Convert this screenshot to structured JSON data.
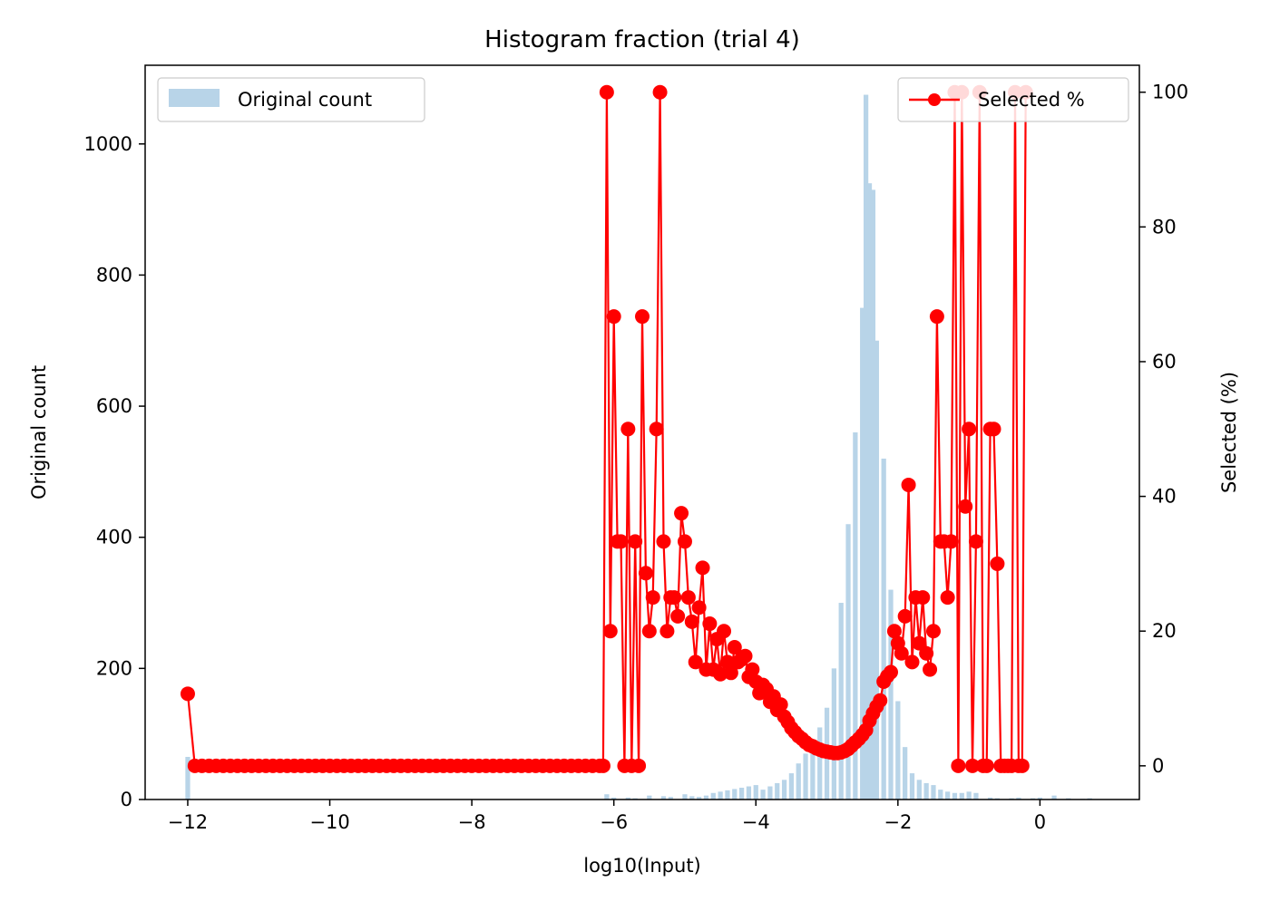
{
  "chart_data": {
    "type": "bar+line",
    "title": "Histogram fraction (trial 4)",
    "xlabel": "log10(Input)",
    "ylabel_left": "Original count",
    "ylabel_right": "Selected (%)",
    "xlim": [
      -12.6,
      1.4
    ],
    "ylim_left": [
      0,
      1120
    ],
    "ylim_right": [
      -5,
      104
    ],
    "x_ticks": [
      -12,
      -10,
      -8,
      -6,
      -4,
      -2,
      0
    ],
    "x_tick_labels": [
      "−12",
      "−10",
      "−8",
      "−6",
      "−4",
      "−2",
      "0"
    ],
    "y_left_ticks": [
      0,
      200,
      400,
      600,
      800,
      1000
    ],
    "y_left_tick_labels": [
      "0",
      "200",
      "400",
      "600",
      "800",
      "1000"
    ],
    "y_right_ticks": [
      0,
      20,
      40,
      60,
      80,
      100
    ],
    "y_right_tick_labels": [
      "0",
      "20",
      "40",
      "60",
      "80",
      "100"
    ],
    "grid": false,
    "legend_left": {
      "placement": "upper-left",
      "label": "Original count"
    },
    "legend_right": {
      "placement": "upper-right",
      "label": "Selected %"
    },
    "colors": {
      "bars": "#b8d4e8",
      "line": "#ff0000"
    },
    "histogram": {
      "name": "Original count",
      "bin_width": 0.067,
      "bins": [
        [
          -12.0,
          65
        ],
        [
          -6.1,
          8
        ],
        [
          -6.0,
          3
        ],
        [
          -5.8,
          3
        ],
        [
          -5.7,
          2
        ],
        [
          -5.5,
          6
        ],
        [
          -5.3,
          5
        ],
        [
          -5.2,
          4
        ],
        [
          -5.0,
          8
        ],
        [
          -4.9,
          5
        ],
        [
          -4.8,
          4
        ],
        [
          -4.7,
          6
        ],
        [
          -4.6,
          10
        ],
        [
          -4.5,
          12
        ],
        [
          -4.4,
          14
        ],
        [
          -4.3,
          16
        ],
        [
          -4.2,
          18
        ],
        [
          -4.1,
          20
        ],
        [
          -4.0,
          22
        ],
        [
          -3.9,
          15
        ],
        [
          -3.8,
          20
        ],
        [
          -3.7,
          25
        ],
        [
          -3.6,
          30
        ],
        [
          -3.5,
          40
        ],
        [
          -3.4,
          55
        ],
        [
          -3.3,
          70
        ],
        [
          -3.2,
          90
        ],
        [
          -3.1,
          110
        ],
        [
          -3.0,
          140
        ],
        [
          -2.9,
          200
        ],
        [
          -2.8,
          300
        ],
        [
          -2.7,
          420
        ],
        [
          -2.6,
          560
        ],
        [
          -2.5,
          750
        ],
        [
          -2.45,
          1075
        ],
        [
          -2.4,
          940
        ],
        [
          -2.35,
          930
        ],
        [
          -2.3,
          700
        ],
        [
          -2.2,
          520
        ],
        [
          -2.1,
          320
        ],
        [
          -2.0,
          150
        ],
        [
          -1.9,
          80
        ],
        [
          -1.8,
          40
        ],
        [
          -1.7,
          30
        ],
        [
          -1.6,
          25
        ],
        [
          -1.5,
          22
        ],
        [
          -1.4,
          15
        ],
        [
          -1.3,
          12
        ],
        [
          -1.2,
          10
        ],
        [
          -1.1,
          10
        ],
        [
          -1.0,
          12
        ],
        [
          -0.9,
          10
        ],
        [
          -0.7,
          3
        ],
        [
          -0.6,
          2
        ],
        [
          -0.4,
          2
        ],
        [
          -0.3,
          3
        ],
        [
          -0.1,
          2
        ],
        [
          0.0,
          3
        ],
        [
          0.2,
          6
        ],
        [
          0.4,
          2
        ],
        [
          0.6,
          1
        ],
        [
          0.7,
          2
        ]
      ]
    },
    "series": [
      {
        "name": "Selected %",
        "points": [
          [
            -12.0,
            10.7
          ],
          [
            -11.9,
            0
          ],
          [
            -11.8,
            0
          ],
          [
            -11.7,
            0
          ],
          [
            -11.6,
            0
          ],
          [
            -11.5,
            0
          ],
          [
            -11.4,
            0
          ],
          [
            -11.3,
            0
          ],
          [
            -11.2,
            0
          ],
          [
            -11.1,
            0
          ],
          [
            -11.0,
            0
          ],
          [
            -10.9,
            0
          ],
          [
            -10.8,
            0
          ],
          [
            -10.7,
            0
          ],
          [
            -10.6,
            0
          ],
          [
            -10.5,
            0
          ],
          [
            -10.4,
            0
          ],
          [
            -10.3,
            0
          ],
          [
            -10.2,
            0
          ],
          [
            -10.1,
            0
          ],
          [
            -10.0,
            0
          ],
          [
            -9.9,
            0
          ],
          [
            -9.8,
            0
          ],
          [
            -9.7,
            0
          ],
          [
            -9.6,
            0
          ],
          [
            -9.5,
            0
          ],
          [
            -9.4,
            0
          ],
          [
            -9.3,
            0
          ],
          [
            -9.2,
            0
          ],
          [
            -9.1,
            0
          ],
          [
            -9.0,
            0
          ],
          [
            -8.9,
            0
          ],
          [
            -8.8,
            0
          ],
          [
            -8.7,
            0
          ],
          [
            -8.6,
            0
          ],
          [
            -8.5,
            0
          ],
          [
            -8.4,
            0
          ],
          [
            -8.3,
            0
          ],
          [
            -8.2,
            0
          ],
          [
            -8.1,
            0
          ],
          [
            -8.0,
            0
          ],
          [
            -7.9,
            0
          ],
          [
            -7.8,
            0
          ],
          [
            -7.7,
            0
          ],
          [
            -7.6,
            0
          ],
          [
            -7.5,
            0
          ],
          [
            -7.4,
            0
          ],
          [
            -7.3,
            0
          ],
          [
            -7.2,
            0
          ],
          [
            -7.1,
            0
          ],
          [
            -7.0,
            0
          ],
          [
            -6.9,
            0
          ],
          [
            -6.8,
            0
          ],
          [
            -6.7,
            0
          ],
          [
            -6.6,
            0
          ],
          [
            -6.5,
            0
          ],
          [
            -6.4,
            0
          ],
          [
            -6.3,
            0
          ],
          [
            -6.2,
            0
          ],
          [
            -6.15,
            0
          ],
          [
            -6.1,
            100
          ],
          [
            -6.05,
            20
          ],
          [
            -6.0,
            66.7
          ],
          [
            -5.95,
            33.3
          ],
          [
            -5.9,
            33.3
          ],
          [
            -5.85,
            0
          ],
          [
            -5.8,
            50
          ],
          [
            -5.75,
            0
          ],
          [
            -5.7,
            33.3
          ],
          [
            -5.65,
            0
          ],
          [
            -5.6,
            66.7
          ],
          [
            -5.55,
            28.6
          ],
          [
            -5.5,
            20
          ],
          [
            -5.45,
            25
          ],
          [
            -5.4,
            50
          ],
          [
            -5.35,
            100
          ],
          [
            -5.3,
            33.3
          ],
          [
            -5.25,
            20
          ],
          [
            -5.2,
            25
          ],
          [
            -5.15,
            25
          ],
          [
            -5.1,
            22.2
          ],
          [
            -5.05,
            37.5
          ],
          [
            -5.0,
            33.3
          ],
          [
            -4.95,
            25
          ],
          [
            -4.9,
            21.4
          ],
          [
            -4.85,
            15.4
          ],
          [
            -4.8,
            23.5
          ],
          [
            -4.75,
            29.4
          ],
          [
            -4.7,
            14.3
          ],
          [
            -4.65,
            21.1
          ],
          [
            -4.6,
            14.3
          ],
          [
            -4.55,
            18.8
          ],
          [
            -4.5,
            13.6
          ],
          [
            -4.45,
            20
          ],
          [
            -4.4,
            15.4
          ],
          [
            -4.35,
            13.8
          ],
          [
            -4.3,
            17.6
          ],
          [
            -4.25,
            15.4
          ],
          [
            -4.2,
            15.8
          ],
          [
            -4.15,
            16.3
          ],
          [
            -4.1,
            13.2
          ],
          [
            -4.05,
            14.3
          ],
          [
            -4.0,
            12.5
          ],
          [
            -3.95,
            10.8
          ],
          [
            -3.9,
            12.0
          ],
          [
            -3.85,
            11.4
          ],
          [
            -3.8,
            9.5
          ],
          [
            -3.75,
            10.3
          ],
          [
            -3.7,
            8.3
          ],
          [
            -3.65,
            9.1
          ],
          [
            -3.6,
            7.3
          ],
          [
            -3.55,
            6.5
          ],
          [
            -3.5,
            5.6
          ],
          [
            -3.45,
            5.0
          ],
          [
            -3.4,
            4.4
          ],
          [
            -3.35,
            4.0
          ],
          [
            -3.3,
            3.5
          ],
          [
            -3.25,
            3.1
          ],
          [
            -3.2,
            2.9
          ],
          [
            -3.15,
            2.6
          ],
          [
            -3.1,
            2.4
          ],
          [
            -3.05,
            2.2
          ],
          [
            -3.0,
            2.1
          ],
          [
            -2.95,
            2.0
          ],
          [
            -2.9,
            1.9
          ],
          [
            -2.85,
            1.9
          ],
          [
            -2.8,
            2.0
          ],
          [
            -2.75,
            2.2
          ],
          [
            -2.7,
            2.5
          ],
          [
            -2.65,
            3.0
          ],
          [
            -2.6,
            3.5
          ],
          [
            -2.55,
            4.0
          ],
          [
            -2.5,
            4.6
          ],
          [
            -2.45,
            5.3
          ],
          [
            -2.4,
            6.7
          ],
          [
            -2.35,
            7.8
          ],
          [
            -2.3,
            8.8
          ],
          [
            -2.25,
            9.7
          ],
          [
            -2.2,
            12.5
          ],
          [
            -2.15,
            13.3
          ],
          [
            -2.1,
            13.9
          ],
          [
            -2.05,
            20
          ],
          [
            -2.0,
            18.2
          ],
          [
            -1.95,
            16.7
          ],
          [
            -1.9,
            22.2
          ],
          [
            -1.85,
            41.7
          ],
          [
            -1.8,
            15.4
          ],
          [
            -1.75,
            25
          ],
          [
            -1.7,
            18.2
          ],
          [
            -1.65,
            25
          ],
          [
            -1.6,
            16.7
          ],
          [
            -1.55,
            14.3
          ],
          [
            -1.5,
            20
          ],
          [
            -1.45,
            66.7
          ],
          [
            -1.4,
            33.3
          ],
          [
            -1.35,
            33.3
          ],
          [
            -1.3,
            25
          ],
          [
            -1.25,
            33.3
          ],
          [
            -1.2,
            100
          ],
          [
            -1.15,
            0
          ],
          [
            -1.1,
            100
          ],
          [
            -1.05,
            38.5
          ],
          [
            -1.0,
            50
          ],
          [
            -0.95,
            0
          ],
          [
            -0.9,
            33.3
          ],
          [
            -0.85,
            100
          ],
          [
            -0.8,
            0
          ],
          [
            -0.75,
            0
          ],
          [
            -0.7,
            50
          ],
          [
            -0.65,
            50
          ],
          [
            -0.6,
            30
          ],
          [
            -0.55,
            0
          ],
          [
            -0.5,
            0
          ],
          [
            -0.45,
            0
          ],
          [
            -0.4,
            0
          ],
          [
            -0.35,
            100
          ],
          [
            -0.3,
            0
          ],
          [
            -0.25,
            0
          ],
          [
            -0.2,
            100
          ]
        ]
      }
    ]
  }
}
